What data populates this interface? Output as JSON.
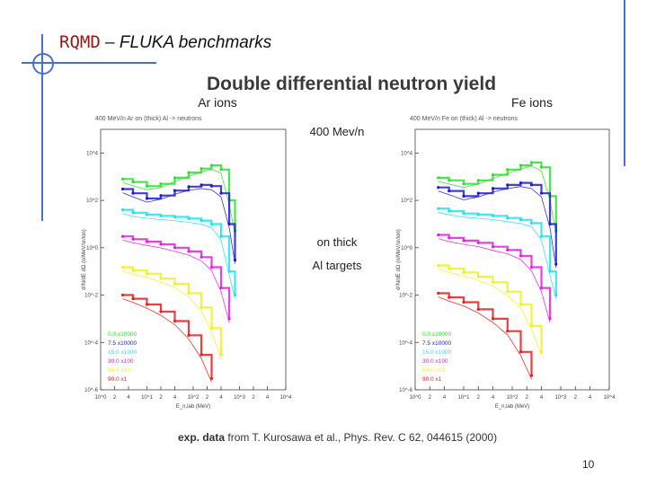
{
  "slide": {
    "title_part1": "RQMD",
    "title_part2": " – FLUKA benchmarks",
    "heading": "Double differential neutron yield",
    "page_number": "10"
  },
  "middle": {
    "energy": "400 Mev/n",
    "line1": "on thick",
    "line2": "Al targets"
  },
  "caption": {
    "bold": "exp. data",
    "rest": " from T. Kurosawa et al., Phys. Rev. C 62, 044615 (2000)"
  },
  "colors": {
    "green": "#2ee02e",
    "blue": "#1c1cd6",
    "cyan": "#22e0ee",
    "magenta": "#e020e0",
    "yellow": "#f0f020",
    "red": "#e02020"
  },
  "chart_data": [
    {
      "type": "line",
      "title": "Ar ions",
      "subtitle": "400 MeV/n Ar on (thick) Al -> neutrons",
      "xlabel": "E_n,lab (MeV)",
      "ylabel": "d²N/dE dΩ (n/MeV/sr/ion)",
      "x_scale": "log",
      "y_scale": "log",
      "xlim": [
        1,
        10000
      ],
      "ylim": [
        1e-06,
        100000
      ],
      "x_tick_labels": [
        "10^0",
        "2",
        "4",
        "10^1",
        "2",
        "4",
        "10^2",
        "2",
        "4",
        "10^3",
        "2",
        "4",
        "10^4"
      ],
      "y_tick_labels": [
        "10^4",
        "10^2",
        "10^0",
        "10^-2",
        "10^-4",
        "10^-6"
      ],
      "y_tick_values": [
        10000,
        100,
        1,
        0.01,
        0.0001,
        1e-06
      ],
      "x": [
        3,
        5,
        10,
        20,
        40,
        80,
        150,
        250,
        400,
        600,
        800
      ],
      "series": [
        {
          "name": "0.0 x10000",
          "color": "#2ee02e",
          "values": [
            800,
            600,
            400,
            500,
            900,
            1500,
            2200,
            3000,
            2000,
            100,
            5
          ]
        },
        {
          "name": "7.5 x10000",
          "color": "#1c1cd6",
          "values": [
            300,
            200,
            120,
            160,
            260,
            380,
            450,
            400,
            200,
            10,
            0.3
          ]
        },
        {
          "name": "15.0 x1000",
          "color": "#22e0ee",
          "values": [
            40,
            30,
            25,
            22,
            20,
            17,
            14,
            10,
            3,
            0.1,
            0.01
          ]
        },
        {
          "name": "30.0 x100",
          "color": "#e020e0",
          "values": [
            3,
            2.3,
            1.8,
            1.4,
            1.0,
            0.7,
            0.4,
            0.15,
            0.02,
            0.001,
            null
          ]
        },
        {
          "name": "60.0 x10",
          "color": "#f0f020",
          "values": [
            0.15,
            0.11,
            0.08,
            0.05,
            0.03,
            0.012,
            0.003,
            0.0004,
            3e-05,
            null,
            null
          ]
        },
        {
          "name": "90.0 x1",
          "color": "#e02020",
          "values": [
            0.01,
            0.007,
            0.004,
            0.002,
            0.0008,
            0.0002,
            3e-05,
            3e-06,
            null,
            null,
            null
          ]
        }
      ]
    },
    {
      "type": "line",
      "title": "Fe ions",
      "subtitle": "400 MeV/n Fe on (thick) Al -> neutrons",
      "xlabel": "E_n,lab (MeV)",
      "ylabel": "d²N/dE dΩ (n/MeV/sr/ion)",
      "x_scale": "log",
      "y_scale": "log",
      "xlim": [
        1,
        10000
      ],
      "ylim": [
        1e-06,
        100000
      ],
      "x_tick_labels": [
        "10^0",
        "2",
        "4",
        "10^1",
        "2",
        "4",
        "10^2",
        "2",
        "4",
        "10^3",
        "2",
        "4",
        "10^4"
      ],
      "y_tick_labels": [
        "10^4",
        "10^2",
        "10^0",
        "10^-2",
        "10^-4",
        "10^-6"
      ],
      "y_tick_values": [
        10000,
        100,
        1,
        0.01,
        0.0001,
        1e-06
      ],
      "x": [
        3,
        5,
        10,
        20,
        40,
        80,
        150,
        250,
        400,
        600,
        800
      ],
      "series": [
        {
          "name": "0.0 x10000",
          "color": "#2ee02e",
          "values": [
            900,
            700,
            500,
            700,
            1200,
            2000,
            3000,
            4000,
            2500,
            150,
            5
          ]
        },
        {
          "name": "7.5 x10000",
          "color": "#1c1cd6",
          "values": [
            350,
            250,
            150,
            200,
            320,
            450,
            550,
            450,
            200,
            10,
            0.2
          ]
        },
        {
          "name": "15.0 x1000",
          "color": "#22e0ee",
          "values": [
            45,
            35,
            28,
            25,
            22,
            18,
            15,
            11,
            3,
            0.1,
            0.01
          ]
        },
        {
          "name": "30.0 x100",
          "color": "#e020e0",
          "values": [
            3.5,
            2.6,
            2.0,
            1.6,
            1.1,
            0.8,
            0.45,
            0.15,
            0.02,
            0.001,
            null
          ]
        },
        {
          "name": "60.0 x10",
          "color": "#f0f020",
          "values": [
            0.18,
            0.13,
            0.09,
            0.06,
            0.035,
            0.014,
            0.004,
            0.0005,
            4e-05,
            null,
            null
          ]
        },
        {
          "name": "90.0 x1",
          "color": "#e02020",
          "values": [
            0.012,
            0.008,
            0.005,
            0.0025,
            0.001,
            0.0003,
            4e-05,
            4e-06,
            null,
            null,
            null
          ]
        }
      ]
    }
  ]
}
